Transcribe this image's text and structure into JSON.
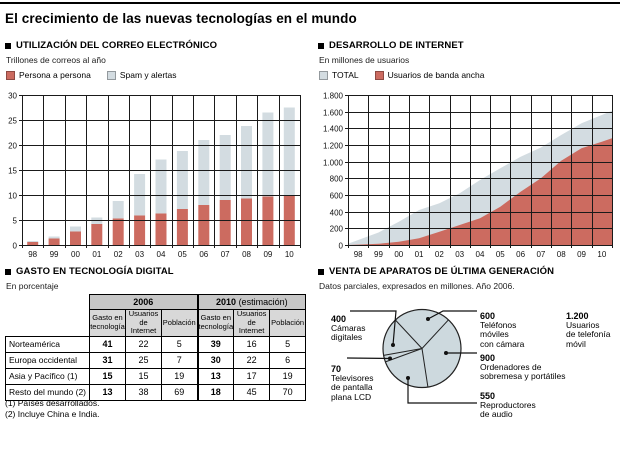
{
  "page": {
    "title": "El crecimiento de las nuevas tecnologías en el mundo"
  },
  "colors": {
    "salmon": "#cc6b60",
    "lightblue": "#d3dce1",
    "pie_fill": "#cdd9de",
    "grid": "#1a1a1a",
    "table_year_bg": "#c7c7c7",
    "table_sub_bg": "#d8d8d8"
  },
  "email_panel": {
    "header": "UTILIZACIÓN DEL CORREO ELECTRÓNICO",
    "subtitle": "Trillones de correos al año",
    "legend": [
      {
        "label": "Persona a persona",
        "color": "#cc6b60"
      },
      {
        "label": "Spam y alertas",
        "color": "#d3dce1"
      }
    ],
    "chart_data": {
      "type": "bar",
      "stacked": true,
      "title": "UTILIZACIÓN DEL CORREO ELECTRÓNICO",
      "ylabel": "Trillones de correos al año",
      "categories": [
        "98",
        "99",
        "00",
        "01",
        "02",
        "03",
        "04",
        "05",
        "06",
        "07",
        "08",
        "09",
        "10"
      ],
      "series": [
        {
          "name": "Persona a persona",
          "color": "#cc6b60",
          "values": [
            0.6,
            1.3,
            2.7,
            4.2,
            5.3,
            5.9,
            6.3,
            7.2,
            8.0,
            9.0,
            9.3,
            9.7,
            9.9
          ]
        },
        {
          "name": "Spam y alertas",
          "color": "#d3dce1",
          "values": [
            0.2,
            0.4,
            1.0,
            1.3,
            3.5,
            8.3,
            10.8,
            11.6,
            13.0,
            13.0,
            14.5,
            16.8,
            17.6
          ]
        }
      ],
      "ylim": [
        0,
        30
      ],
      "ytick_step": 5,
      "ytick_labels": [
        "0",
        "5",
        "10",
        "15",
        "20",
        "25",
        "30"
      ],
      "grid": true,
      "legend_position": "top"
    }
  },
  "internet_panel": {
    "header": "DESARROLLO DE INTERNET",
    "subtitle": "En millones de usuarios",
    "legend": [
      {
        "label": "TOTAL",
        "color": "#d3dce1"
      },
      {
        "label": "Usuarios de banda ancha",
        "color": "#cc6b60"
      }
    ],
    "chart_data": {
      "type": "area",
      "title": "DESARROLLO DE INTERNET",
      "ylabel": "En millones de usuarios",
      "categories": [
        "98",
        "99",
        "00",
        "01",
        "02",
        "03",
        "04",
        "05",
        "06",
        "07",
        "08",
        "09",
        "10"
      ],
      "series": [
        {
          "name": "TOTAL",
          "color": "#d3dce1",
          "values": [
            60,
            150,
            280,
            420,
            500,
            620,
            780,
            920,
            1060,
            1170,
            1320,
            1460,
            1560
          ]
        },
        {
          "name": "Usuarios de banda ancha",
          "color": "#cc6b60",
          "values": [
            5,
            15,
            40,
            80,
            160,
            240,
            320,
            460,
            640,
            800,
            1010,
            1160,
            1240
          ]
        }
      ],
      "ylim": [
        0,
        1800
      ],
      "ytick_step": 200,
      "ytick_labels": [
        "0",
        "200",
        "400",
        "600",
        "800",
        "1.000",
        "1.200",
        "1.400",
        "1.600",
        "1.800"
      ],
      "grid": true,
      "legend_position": "top"
    }
  },
  "table_panel": {
    "header": "GASTO EN TECNOLOGÍA DIGITAL",
    "subtitle": "En porcentaje",
    "chart_data": {
      "type": "table",
      "group_headers": [
        {
          "year": "2006",
          "suffix": ""
        },
        {
          "year": "2010",
          "suffix": " (estimación)"
        }
      ],
      "col_headers": [
        "Gasto en\ntecnología",
        "Usuarios\nde Internet",
        "Población",
        "Gasto en\ntecnología",
        "Usuarios\nde Internet",
        "Población"
      ],
      "rows": [
        {
          "label": "Norteamérica",
          "values": [
            41,
            22,
            5,
            39,
            16,
            5
          ]
        },
        {
          "label": "Europa occidental",
          "values": [
            31,
            25,
            7,
            30,
            22,
            6
          ]
        },
        {
          "label": "Asia y Pacífico (1)",
          "values": [
            15,
            15,
            19,
            13,
            17,
            19
          ]
        },
        {
          "label": "Resto del mundo (2)",
          "values": [
            13,
            38,
            69,
            18,
            45,
            70
          ]
        }
      ]
    },
    "footnotes": [
      "(1) Países desarrollados.",
      "(2) Incluye China e India."
    ]
  },
  "pie_panel": {
    "header": "VENTA DE APARATOS DE ÚLTIMA GENERACIÓN",
    "subtitle": "Datos parciales, expresados en millones. Año 2006.",
    "chart_data": {
      "type": "pie",
      "title": "VENTA DE APARATOS DE ÚLTIMA GENERACIÓN",
      "start_angle_deg": 317,
      "single_fill": "#cdd9de",
      "slices": [
        {
          "label": "Teléfonos móviles con cámara",
          "value": 600
        },
        {
          "label": "Ordenadores de sobremesa y portátiles",
          "value": 900
        },
        {
          "label": "Reproductores de audio",
          "value": 550
        },
        {
          "label": "Televisores de pantalla plana LCD",
          "value": 70
        },
        {
          "label": "Cámaras digitales",
          "value": 400
        }
      ],
      "annotation": {
        "value_display": "1.200",
        "label": "Usuarios de telefonía móvil"
      }
    },
    "labels": [
      {
        "num": "400",
        "text": "Cámaras\ndigitales"
      },
      {
        "num": "70",
        "text": "Televisores\nde pantalla\nplana LCD"
      },
      {
        "num": "600",
        "text": "Teléfonos\nmóviles\ncon cámara"
      },
      {
        "num": "900",
        "text": "Ordenadores de\nsobremesa y portátiles"
      },
      {
        "num": "550",
        "text": "Reproductores\nde audio"
      },
      {
        "num": "1.200",
        "text": "Usuarios\nde telefonía\nmóvil"
      }
    ]
  }
}
